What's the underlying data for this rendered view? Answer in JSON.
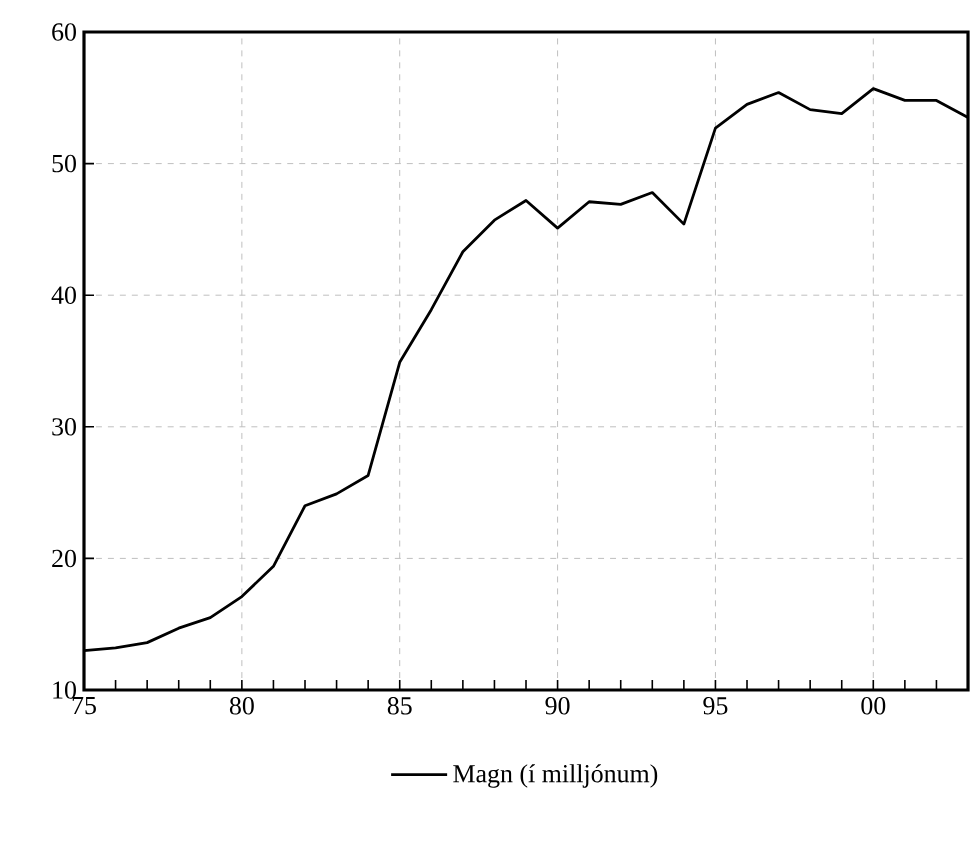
{
  "chart_data": {
    "type": "line",
    "x": [
      1975,
      1976,
      1977,
      1978,
      1979,
      1980,
      1981,
      1982,
      1983,
      1984,
      1985,
      1986,
      1987,
      1988,
      1989,
      1990,
      1991,
      1992,
      1993,
      1994,
      1995,
      1996,
      1997,
      1998,
      1999,
      2000,
      2001,
      2002,
      2003
    ],
    "series": [
      {
        "name": "Magn (í milljónum)",
        "color": "#000000",
        "values": [
          13.0,
          13.2,
          13.6,
          14.7,
          15.5,
          17.1,
          19.4,
          24.0,
          24.9,
          26.3,
          34.9,
          38.9,
          43.3,
          45.7,
          47.2,
          45.1,
          47.1,
          46.9,
          47.8,
          45.4,
          52.7,
          54.5,
          55.4,
          54.1,
          53.8,
          55.7,
          54.8,
          54.8,
          53.5
        ]
      }
    ],
    "xlim": [
      1975,
      2003
    ],
    "ylim": [
      10,
      60
    ],
    "xticks": [
      {
        "value": 1975,
        "label": "75"
      },
      {
        "value": 1976,
        "label": null
      },
      {
        "value": 1977,
        "label": null
      },
      {
        "value": 1978,
        "label": null
      },
      {
        "value": 1979,
        "label": null
      },
      {
        "value": 1980,
        "label": "80"
      },
      {
        "value": 1981,
        "label": null
      },
      {
        "value": 1982,
        "label": null
      },
      {
        "value": 1983,
        "label": null
      },
      {
        "value": 1984,
        "label": null
      },
      {
        "value": 1985,
        "label": "85"
      },
      {
        "value": 1986,
        "label": null
      },
      {
        "value": 1987,
        "label": null
      },
      {
        "value": 1988,
        "label": null
      },
      {
        "value": 1989,
        "label": null
      },
      {
        "value": 1990,
        "label": "90"
      },
      {
        "value": 1991,
        "label": null
      },
      {
        "value": 1992,
        "label": null
      },
      {
        "value": 1993,
        "label": null
      },
      {
        "value": 1994,
        "label": null
      },
      {
        "value": 1995,
        "label": "95"
      },
      {
        "value": 1996,
        "label": null
      },
      {
        "value": 1997,
        "label": null
      },
      {
        "value": 1998,
        "label": null
      },
      {
        "value": 1999,
        "label": null
      },
      {
        "value": 2000,
        "label": "00"
      },
      {
        "value": 2001,
        "label": null
      },
      {
        "value": 2002,
        "label": null
      },
      {
        "value": 2003,
        "label": null
      }
    ],
    "yticks": [
      10,
      20,
      30,
      40,
      50,
      60
    ],
    "grid": true,
    "legend": "bottom",
    "marker": "none",
    "line_style": "solid"
  }
}
